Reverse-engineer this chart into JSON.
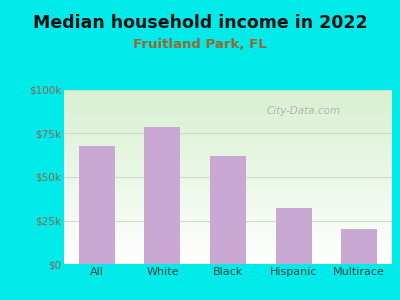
{
  "title": "Median household income in 2022",
  "subtitle": "Fruitland Park, FL",
  "categories": [
    "All",
    "White",
    "Black",
    "Hispanic",
    "Multirace"
  ],
  "values": [
    68000,
    79000,
    62000,
    32000,
    20000
  ],
  "bar_color": "#c9a8d4",
  "title_fontsize": 12.5,
  "subtitle_fontsize": 9.5,
  "subtitle_color": "#996633",
  "title_color": "#111111",
  "background_outer": "#00eaea",
  "background_inner_top_left": "#d8f0d0",
  "background_inner_bottom": "#ffffff",
  "ytick_color": "#886655",
  "xtick_color": "#444444",
  "ylim": [
    0,
    100000
  ],
  "yticks": [
    0,
    25000,
    50000,
    75000,
    100000
  ],
  "ytick_labels": [
    "$0",
    "$25k",
    "$50k",
    "$75k",
    "$100k"
  ],
  "watermark": "City-Data.com",
  "watermark_color": "#aaaaaa"
}
